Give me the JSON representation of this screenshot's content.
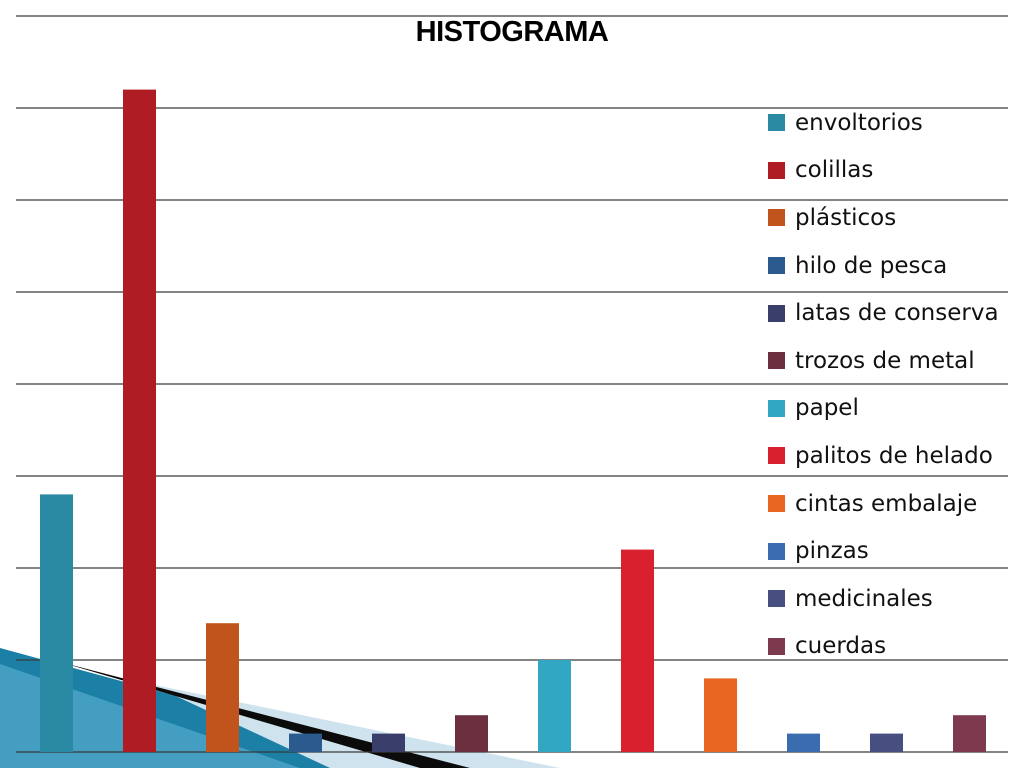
{
  "chart_data": {
    "type": "bar",
    "title": "HISTOGRAMA",
    "xlabel": "",
    "ylabel": "",
    "categories": [
      "envoltorios",
      "colillas",
      "plásticos",
      "hilo de pesca",
      "latas de conserva",
      "trozos de metal",
      "papel",
      "palitos de helado",
      "cintas embalaje",
      "pinzas",
      "medicinales",
      "cuerdas"
    ],
    "series": [
      {
        "values": [
          28,
          72,
          14,
          2,
          2,
          4,
          10,
          22,
          8,
          2,
          2,
          4
        ],
        "colors": [
          "#2a8aa3",
          "#b01c24",
          "#c0541c",
          "#2b5a8f",
          "#3a3e6b",
          "#6b2f3f",
          "#31a7c4",
          "#d8202e",
          "#e86522",
          "#3b6cb0",
          "#474f80",
          "#7d3a4e"
        ]
      }
    ],
    "ylim": [
      0,
      80
    ],
    "grid": true,
    "legend": "right"
  }
}
